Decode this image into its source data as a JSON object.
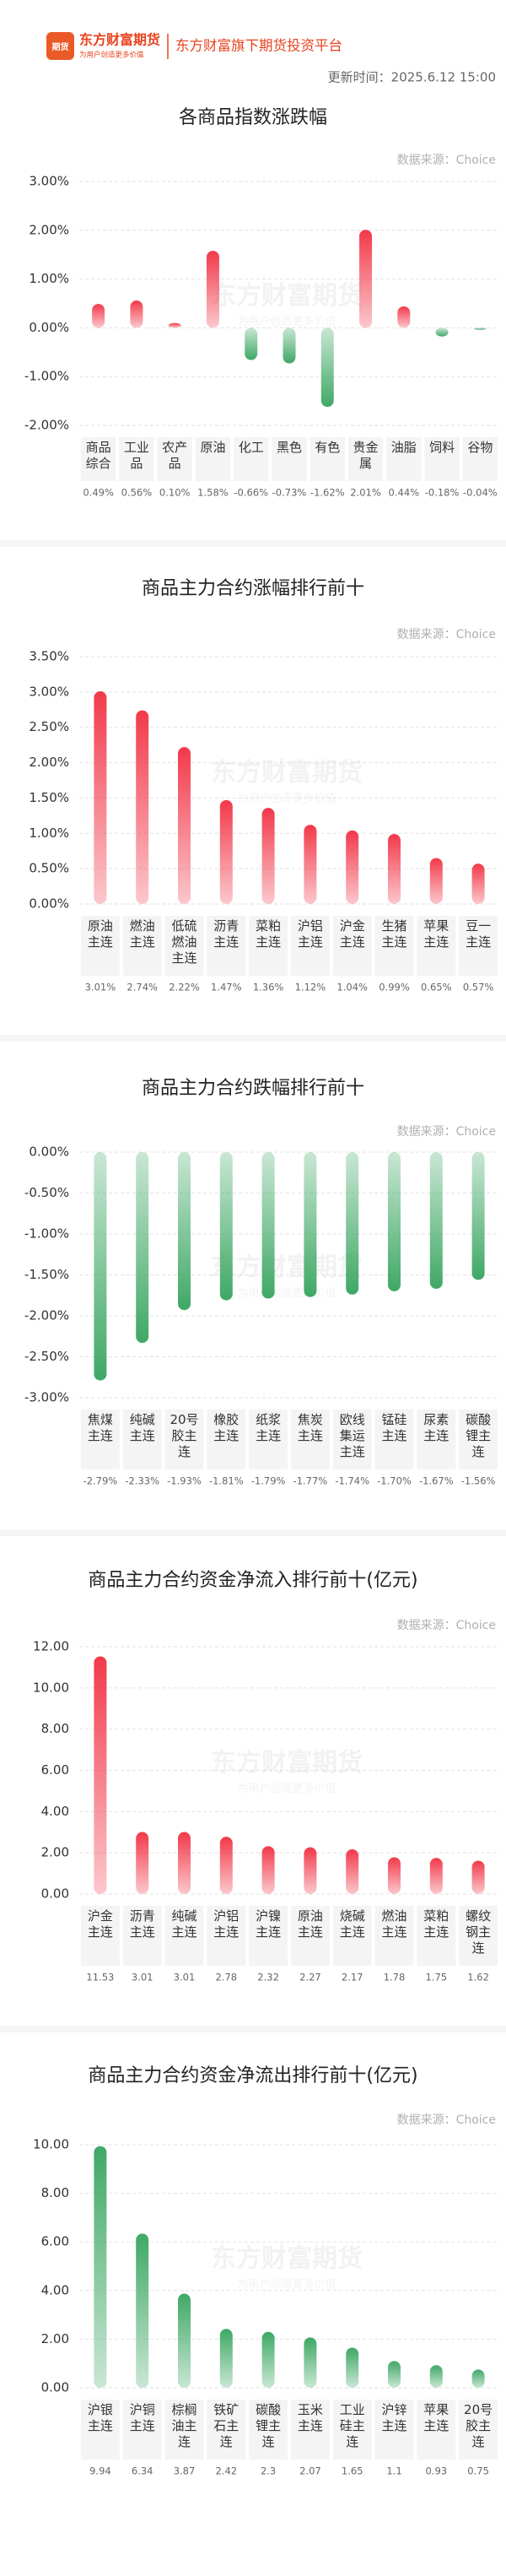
{
  "header": {
    "logo_badge": "期货",
    "logo_name": "东方财富期货",
    "logo_slogan": "为用户创造更多价值",
    "platform": "东方财富旗下期货投资平台",
    "update_time": "更新时间：2025.6.12 15:00",
    "watermark": "东方财富期货",
    "watermark_slogan": "为用户创造更多价值"
  },
  "chart_data": [
    {
      "type": "bar",
      "title": "各商品指数涨跌幅",
      "source": "数据来源：Choice",
      "color": "#f2394a",
      "negative_color": "#3fa865",
      "categories": [
        "商品综合",
        "工业品",
        "农产品",
        "原油",
        "化工",
        "黑色",
        "有色",
        "贵金属",
        "油脂",
        "饲料",
        "谷物"
      ],
      "values": [
        0.49,
        0.56,
        0.1,
        1.58,
        -0.66,
        -0.73,
        -1.62,
        2.01,
        0.44,
        -0.18,
        -0.04
      ],
      "value_labels": [
        "0.49%",
        "0.56%",
        "0.10%",
        "1.58%",
        "-0.66%",
        "-0.73%",
        "-1.62%",
        "2.01%",
        "0.44%",
        "-0.18%",
        "-0.04%"
      ],
      "ylim": [
        -2,
        3
      ],
      "yticks": [
        {
          "value": 3,
          "label": "3.00%"
        },
        {
          "value": 2,
          "label": "2.00%"
        },
        {
          "value": 1,
          "label": "1.00%"
        },
        {
          "value": 0,
          "label": "0.00%"
        },
        {
          "value": -1,
          "label": "-1.00%"
        },
        {
          "value": -2,
          "label": "-2.00%"
        }
      ],
      "grid": true
    },
    {
      "type": "bar",
      "title": "商品主力合约涨幅排行前十",
      "source": "数据来源：Choice",
      "color": "#f2394a",
      "categories": [
        "原油主连",
        "燃油主连",
        "低硫燃油主连",
        "沥青主连",
        "菜粕主连",
        "沪铝主连",
        "沪金主连",
        "生猪主连",
        "苹果主连",
        "豆一主连"
      ],
      "values": [
        3.01,
        2.74,
        2.22,
        1.47,
        1.36,
        1.12,
        1.04,
        0.99,
        0.65,
        0.57
      ],
      "value_labels": [
        "3.01%",
        "2.74%",
        "2.22%",
        "1.47%",
        "1.36%",
        "1.12%",
        "1.04%",
        "0.99%",
        "0.65%",
        "0.57%"
      ],
      "ylim": [
        0,
        3.5
      ],
      "yticks": [
        {
          "value": 3.5,
          "label": "3.50%"
        },
        {
          "value": 3,
          "label": "3.00%"
        },
        {
          "value": 2.5,
          "label": "2.50%"
        },
        {
          "value": 2,
          "label": "2.00%"
        },
        {
          "value": 1.5,
          "label": "1.50%"
        },
        {
          "value": 1,
          "label": "1.00%"
        },
        {
          "value": 0.5,
          "label": "0.50%"
        },
        {
          "value": 0,
          "label": "0.00%"
        }
      ],
      "grid": true
    },
    {
      "type": "bar",
      "title": "商品主力合约跌幅排行前十",
      "source": "数据来源：Choice",
      "color": "#3fa865",
      "categories": [
        "焦煤主连",
        "纯碱主连",
        "20号胶主连",
        "橡胶主连",
        "纸浆主连",
        "焦炭主连",
        "欧线集运主连",
        "锰硅主连",
        "尿素主连",
        "碳酸锂主连"
      ],
      "values": [
        -2.79,
        -2.33,
        -1.93,
        -1.81,
        -1.79,
        -1.77,
        -1.74,
        -1.7,
        -1.67,
        -1.56
      ],
      "value_labels": [
        "-2.79%",
        "-2.33%",
        "-1.93%",
        "-1.81%",
        "-1.79%",
        "-1.77%",
        "-1.74%",
        "-1.70%",
        "-1.67%",
        "-1.56%"
      ],
      "ylim": [
        -3,
        0
      ],
      "yticks": [
        {
          "value": 0,
          "label": "0.00%"
        },
        {
          "value": -0.5,
          "label": "-0.50%"
        },
        {
          "value": -1,
          "label": "-1.00%"
        },
        {
          "value": -1.5,
          "label": "-1.50%"
        },
        {
          "value": -2,
          "label": "-2.00%"
        },
        {
          "value": -2.5,
          "label": "-2.50%"
        },
        {
          "value": -3,
          "label": "-3.00%"
        }
      ],
      "grid": true
    },
    {
      "type": "bar",
      "title": "商品主力合约资金净流入排行前十(亿元)",
      "source": "数据来源：Choice",
      "color": "#f2394a",
      "categories": [
        "沪金主连",
        "沥青主连",
        "纯碱主连",
        "沪铝主连",
        "沪镍主连",
        "原油主连",
        "烧碱主连",
        "燃油主连",
        "菜粕主连",
        "螺纹钢主连"
      ],
      "values": [
        11.53,
        3.01,
        3.01,
        2.78,
        2.32,
        2.27,
        2.17,
        1.78,
        1.75,
        1.62
      ],
      "ylim": [
        0,
        12
      ],
      "yticks": [
        {
          "value": 12,
          "label": "12.00"
        },
        {
          "value": 10,
          "label": "10.00"
        },
        {
          "value": 8,
          "label": "8.00"
        },
        {
          "value": 6,
          "label": "6.00"
        },
        {
          "value": 4,
          "label": "4.00"
        },
        {
          "value": 2,
          "label": "2.00"
        },
        {
          "value": 0,
          "label": "0.00"
        }
      ],
      "grid": true
    },
    {
      "type": "bar",
      "title": "商品主力合约资金净流出排行前十(亿元)",
      "source": "数据来源：Choice",
      "color": "#3fa865",
      "categories": [
        "沪银主连",
        "沪铜主连",
        "棕榈油主连",
        "铁矿石主连",
        "碳酸锂主连",
        "玉米主连",
        "工业硅主连",
        "沪锌主连",
        "苹果主连",
        "20号胶主连"
      ],
      "values": [
        9.94,
        6.34,
        3.87,
        2.42,
        2.3,
        2.07,
        1.65,
        1.1,
        0.93,
        0.75
      ],
      "ylim": [
        0,
        10
      ],
      "yticks": [
        {
          "value": 10,
          "label": "10.00"
        },
        {
          "value": 8,
          "label": "8.00"
        },
        {
          "value": 6,
          "label": "6.00"
        },
        {
          "value": 4,
          "label": "4.00"
        },
        {
          "value": 2,
          "label": "2.00"
        },
        {
          "value": 0,
          "label": "0.00"
        }
      ],
      "grid": true
    }
  ]
}
